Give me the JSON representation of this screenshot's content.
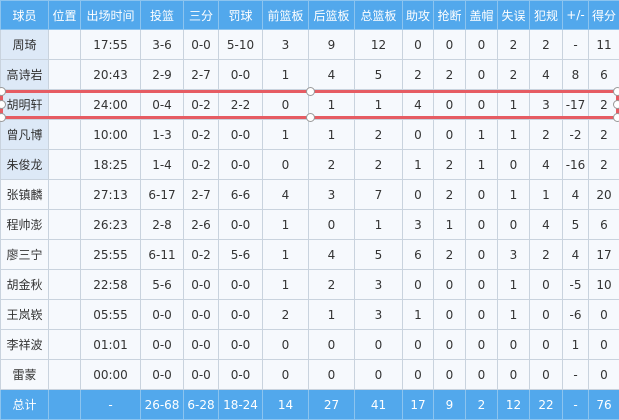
{
  "headers": [
    "球员",
    "位置",
    "出场时间",
    "投篮",
    "三分",
    "罚球",
    "前篮板",
    "后篮板",
    "总篮板",
    "助攻",
    "抢断",
    "盖帽",
    "失误",
    "犯规",
    "+/-",
    "得分"
  ],
  "players": [
    {
      "name": "周琦",
      "pos": "",
      "min": "17:55",
      "fg": "3-6",
      "tp": "0-0",
      "ft": "5-10",
      "oreb": "3",
      "dreb": "9",
      "reb": "12",
      "ast": "0",
      "stl": "0",
      "blk": "0",
      "tov": "2",
      "pf": "2",
      "pm": "-",
      "pts": "11"
    },
    {
      "name": "高诗岩",
      "pos": "",
      "min": "20:43",
      "fg": "2-9",
      "tp": "2-7",
      "ft": "0-0",
      "oreb": "1",
      "dreb": "4",
      "reb": "5",
      "ast": "2",
      "stl": "2",
      "blk": "0",
      "tov": "2",
      "pf": "4",
      "pm": "8",
      "pts": "6"
    },
    {
      "name": "胡明轩",
      "pos": "",
      "min": "24:00",
      "fg": "0-4",
      "tp": "0-2",
      "ft": "2-2",
      "oreb": "0",
      "dreb": "1",
      "reb": "1",
      "ast": "4",
      "stl": "0",
      "blk": "0",
      "tov": "1",
      "pf": "3",
      "pm": "-17",
      "pts": "2"
    },
    {
      "name": "曾凡博",
      "pos": "",
      "min": "10:00",
      "fg": "1-3",
      "tp": "0-2",
      "ft": "0-0",
      "oreb": "1",
      "dreb": "1",
      "reb": "2",
      "ast": "0",
      "stl": "0",
      "blk": "1",
      "tov": "1",
      "pf": "2",
      "pm": "-2",
      "pts": "2"
    },
    {
      "name": "朱俊龙",
      "pos": "",
      "min": "18:25",
      "fg": "1-4",
      "tp": "0-2",
      "ft": "0-0",
      "oreb": "0",
      "dreb": "2",
      "reb": "2",
      "ast": "1",
      "stl": "2",
      "blk": "1",
      "tov": "0",
      "pf": "4",
      "pm": "-16",
      "pts": "2"
    },
    {
      "name": "张镇麟",
      "pos": "",
      "min": "27:13",
      "fg": "6-17",
      "tp": "2-7",
      "ft": "6-6",
      "oreb": "4",
      "dreb": "3",
      "reb": "7",
      "ast": "0",
      "stl": "2",
      "blk": "0",
      "tov": "1",
      "pf": "1",
      "pm": "4",
      "pts": "20"
    },
    {
      "name": "程帅澎",
      "pos": "",
      "min": "26:23",
      "fg": "2-8",
      "tp": "2-6",
      "ft": "0-0",
      "oreb": "1",
      "dreb": "0",
      "reb": "1",
      "ast": "3",
      "stl": "1",
      "blk": "0",
      "tov": "0",
      "pf": "4",
      "pm": "5",
      "pts": "6"
    },
    {
      "name": "廖三宁",
      "pos": "",
      "min": "25:55",
      "fg": "6-11",
      "tp": "0-2",
      "ft": "5-6",
      "oreb": "1",
      "dreb": "4",
      "reb": "5",
      "ast": "6",
      "stl": "2",
      "blk": "0",
      "tov": "3",
      "pf": "2",
      "pm": "4",
      "pts": "17"
    },
    {
      "name": "胡金秋",
      "pos": "",
      "min": "22:58",
      "fg": "5-6",
      "tp": "0-0",
      "ft": "0-0",
      "oreb": "1",
      "dreb": "2",
      "reb": "3",
      "ast": "0",
      "stl": "0",
      "blk": "0",
      "tov": "1",
      "pf": "0",
      "pm": "-5",
      "pts": "10"
    },
    {
      "name": "王岚嵚",
      "pos": "",
      "min": "05:55",
      "fg": "0-0",
      "tp": "0-0",
      "ft": "0-0",
      "oreb": "2",
      "dreb": "1",
      "reb": "3",
      "ast": "1",
      "stl": "0",
      "blk": "0",
      "tov": "1",
      "pf": "0",
      "pm": "-6",
      "pts": "0"
    },
    {
      "name": "李祥波",
      "pos": "",
      "min": "01:01",
      "fg": "0-0",
      "tp": "0-0",
      "ft": "0-0",
      "oreb": "0",
      "dreb": "0",
      "reb": "0",
      "ast": "0",
      "stl": "0",
      "blk": "0",
      "tov": "0",
      "pf": "0",
      "pm": "1",
      "pts": "0"
    },
    {
      "name": "雷蒙",
      "pos": "",
      "min": "00:00",
      "fg": "0-0",
      "tp": "0-0",
      "ft": "0-0",
      "oreb": "0",
      "dreb": "0",
      "reb": "0",
      "ast": "0",
      "stl": "0",
      "blk": "0",
      "tov": "0",
      "pf": "0",
      "pm": "-",
      "pts": "0"
    }
  ],
  "total": {
    "name": "总计",
    "pos": "",
    "min": "-",
    "fg": "26-68",
    "tp": "6-28",
    "ft": "18-24",
    "oreb": "14",
    "dreb": "27",
    "reb": "41",
    "ast": "17",
    "stl": "9",
    "blk": "2",
    "tov": "12",
    "pf": "22",
    "pm": "-",
    "pts": "76"
  },
  "selected_row": "胡明轩",
  "colors": {
    "header": "#52a8ec",
    "selection": "#e65c63",
    "name_cell": "#dde9f7"
  }
}
